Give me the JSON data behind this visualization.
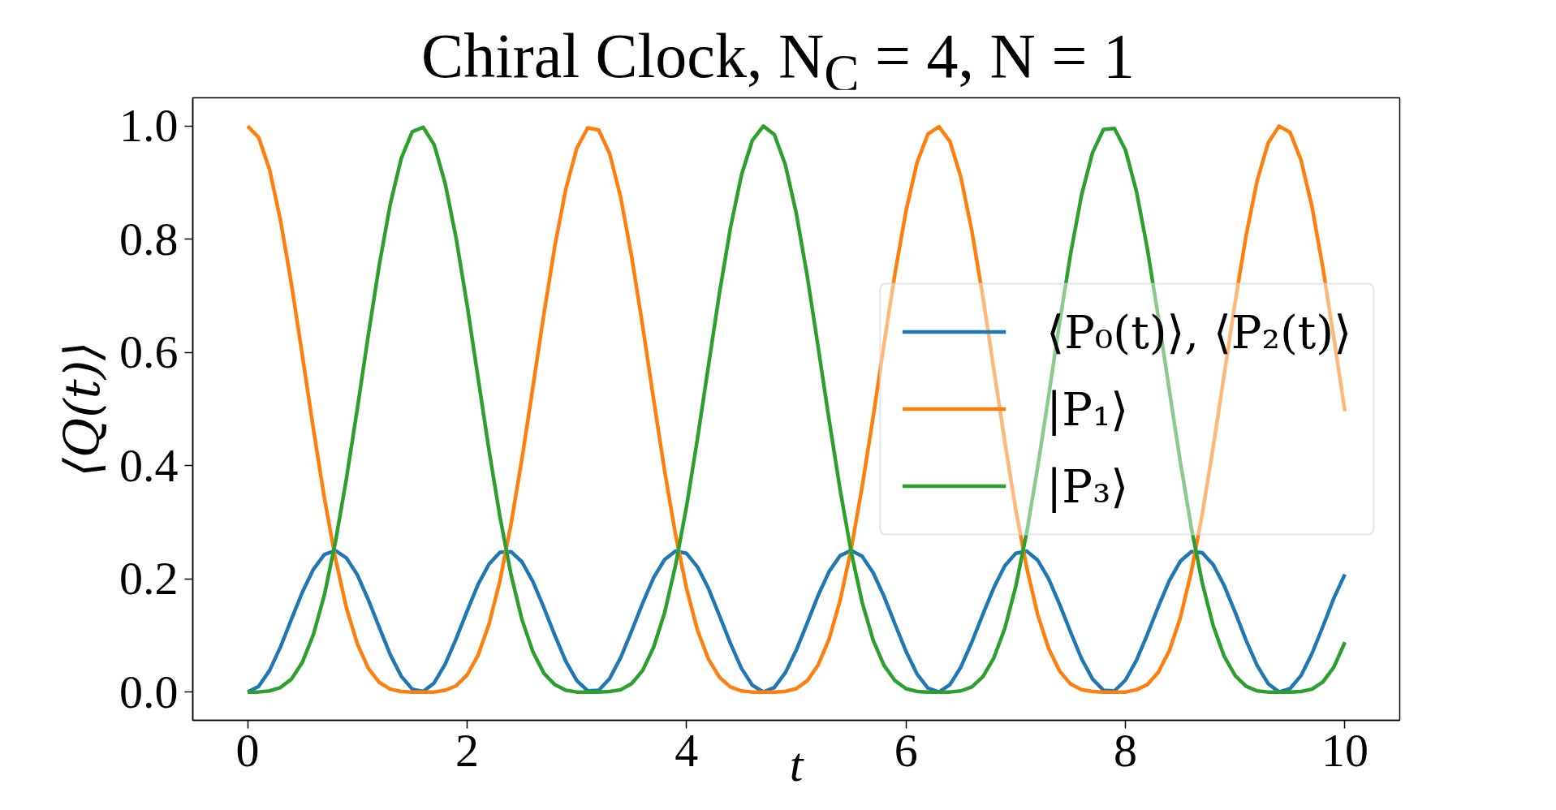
{
  "chart_data": {
    "type": "line",
    "title": "Chiral Clock, N$_{C}$ = 4, N = 1",
    "xlabel": "t",
    "ylabel": "⟨Q(t)⟩",
    "x": [
      0,
      0.1,
      0.2,
      0.3,
      0.4,
      0.5,
      0.6,
      0.7,
      0.8,
      0.9,
      1.0,
      1.1,
      1.2,
      1.3,
      1.4,
      1.5,
      1.6,
      1.7,
      1.8,
      1.9,
      2.0,
      2.1,
      2.2,
      2.3,
      2.4,
      2.5,
      2.6,
      2.7,
      2.8,
      2.9,
      3.0,
      3.1,
      3.2,
      3.3,
      3.4,
      3.5,
      3.6,
      3.7,
      3.8,
      3.9,
      4.0,
      4.1,
      4.2,
      4.3,
      4.4,
      4.5,
      4.6,
      4.7,
      4.8,
      4.9,
      5.0,
      5.1,
      5.2,
      5.3,
      5.4,
      5.5,
      5.6,
      5.7,
      5.8,
      5.9,
      6.0,
      6.1,
      6.2,
      6.3,
      6.4,
      6.5,
      6.6,
      6.7,
      6.8,
      6.9,
      7.0,
      7.1,
      7.2,
      7.3,
      7.4,
      7.5,
      7.6,
      7.7,
      7.8,
      7.9,
      8.0,
      8.1,
      8.2,
      8.3,
      8.4,
      8.5,
      8.6,
      8.7,
      8.8,
      8.9,
      9.0,
      9.1,
      9.2,
      9.3,
      9.4,
      9.5,
      9.6,
      9.7,
      9.8,
      9.9,
      10.0
    ],
    "series": [
      {
        "name": "⟨P₀(t)⟩, ⟨P₂(t)⟩",
        "color": "#1f77b4",
        "values": [
          0,
          0.01,
          0.038,
          0.08,
          0.129,
          0.177,
          0.217,
          0.243,
          0.25,
          0.237,
          0.207,
          0.163,
          0.114,
          0.066,
          0.028,
          0.005,
          0.001,
          0.016,
          0.049,
          0.094,
          0.143,
          0.19,
          0.226,
          0.247,
          0.248,
          0.23,
          0.195,
          0.149,
          0.1,
          0.054,
          0.02,
          0.002,
          0.003,
          0.024,
          0.061,
          0.108,
          0.157,
          0.202,
          0.234,
          0.249,
          0.245,
          0.221,
          0.183,
          0.135,
          0.086,
          0.042,
          0.012,
          0.0,
          0.008,
          0.034,
          0.074,
          0.122,
          0.171,
          0.213,
          0.241,
          0.25,
          0.24,
          0.211,
          0.169,
          0.12,
          0.072,
          0.032,
          0.007,
          0.0,
          0.013,
          0.044,
          0.088,
          0.137,
          0.184,
          0.223,
          0.245,
          0.249,
          0.233,
          0.2,
          0.155,
          0.106,
          0.059,
          0.023,
          0.003,
          0.002,
          0.021,
          0.056,
          0.102,
          0.151,
          0.197,
          0.231,
          0.248,
          0.246,
          0.225,
          0.188,
          0.141,
          0.091,
          0.047,
          0.015,
          0.0,
          0.006,
          0.029,
          0.068,
          0.116,
          0.166,
          0.208
        ]
      },
      {
        "name": "|P₁⟩",
        "color": "#ff7f0e",
        "values": [
          1,
          0.98,
          0.923,
          0.833,
          0.72,
          0.593,
          0.464,
          0.342,
          0.236,
          0.149,
          0.085,
          0.042,
          0.017,
          0.005,
          0.001,
          0,
          0,
          0,
          0.003,
          0.011,
          0.03,
          0.065,
          0.12,
          0.197,
          0.296,
          0.412,
          0.539,
          0.668,
          0.788,
          0.889,
          0.961,
          0.997,
          0.993,
          0.951,
          0.874,
          0.769,
          0.647,
          0.517,
          0.391,
          0.278,
          0.183,
          0.109,
          0.058,
          0.026,
          0.009,
          0.002,
          0,
          0,
          0,
          0.001,
          0.006,
          0.02,
          0.048,
          0.094,
          0.162,
          0.252,
          0.362,
          0.485,
          0.615,
          0.74,
          0.85,
          0.935,
          0.986,
          0.999,
          0.973,
          0.91,
          0.815,
          0.699,
          0.571,
          0.443,
          0.323,
          0.22,
          0.137,
          0.077,
          0.037,
          0.014,
          0.004,
          0.001,
          0,
          0,
          0,
          0.004,
          0.013,
          0.035,
          0.073,
          0.131,
          0.212,
          0.314,
          0.433,
          0.561,
          0.689,
          0.807,
          0.903,
          0.97,
          1.0,
          0.989,
          0.94,
          0.858,
          0.749,
          0.625,
          0.496
        ]
      },
      {
        "name": "|P₃⟩",
        "color": "#2ca02c",
        "values": [
          0,
          0,
          0.002,
          0.008,
          0.023,
          0.053,
          0.102,
          0.172,
          0.265,
          0.377,
          0.501,
          0.631,
          0.755,
          0.862,
          0.943,
          0.99,
          0.998,
          0.967,
          0.899,
          0.802,
          0.684,
          0.555,
          0.427,
          0.309,
          0.208,
          0.128,
          0.071,
          0.033,
          0.013,
          0.003,
          0,
          0,
          0,
          0.001,
          0.004,
          0.015,
          0.038,
          0.079,
          0.14,
          0.224,
          0.328,
          0.448,
          0.577,
          0.705,
          0.82,
          0.913,
          0.975,
          1.0,
          0.985,
          0.932,
          0.846,
          0.735,
          0.609,
          0.48,
          0.357,
          0.248,
          0.159,
          0.092,
          0.047,
          0.02,
          0.006,
          0.001,
          0,
          0,
          0,
          0.002,
          0.009,
          0.027,
          0.06,
          0.112,
          0.186,
          0.282,
          0.397,
          0.523,
          0.653,
          0.774,
          0.878,
          0.953,
          0.994,
          0.996,
          0.958,
          0.885,
          0.783,
          0.662,
          0.533,
          0.407,
          0.291,
          0.193,
          0.117,
          0.063,
          0.029,
          0.01,
          0.002,
          0,
          0,
          0,
          0.001,
          0.005,
          0.018,
          0.044,
          0.088
        ]
      }
    ],
    "xlim": [
      -0.5,
      10.5
    ],
    "ylim": [
      -0.05,
      1.05
    ],
    "xticks": [
      0,
      2,
      4,
      6,
      8,
      10
    ],
    "yticks": [
      {
        "value": 0,
        "label": "0.0"
      },
      0.2,
      0.4,
      0.6,
      0.8,
      {
        "value": 1,
        "label": "1.0"
      }
    ],
    "grid": false,
    "legend": "right"
  }
}
